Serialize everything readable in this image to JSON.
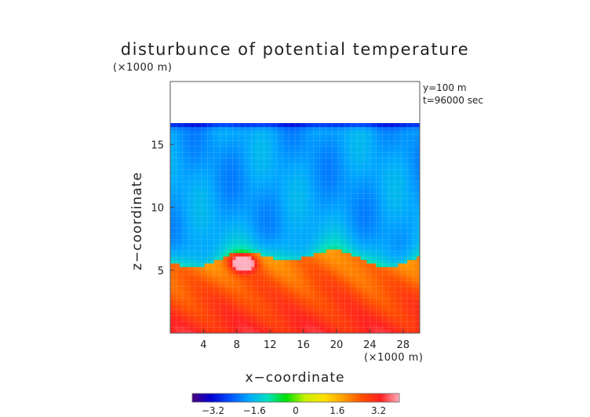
{
  "chart_data": {
    "type": "heatmap",
    "title": "disturbunce of potential temperature",
    "xlabel": "x−coordinate",
    "ylabel": "z−coordinate",
    "x_unit": "(×1000 m)",
    "y_unit": "(×1000 m)",
    "annotations": [
      "y=100 m",
      "t=96000 sec"
    ],
    "xlim": [
      0,
      30
    ],
    "ylim": [
      0,
      20
    ],
    "x_ticks": [
      {
        "value": 4,
        "label": "4"
      },
      {
        "value": 8,
        "label": "8"
      },
      {
        "value": 12,
        "label": "12"
      },
      {
        "value": 16,
        "label": "16"
      },
      {
        "value": 20,
        "label": "20"
      },
      {
        "value": 24,
        "label": "24"
      },
      {
        "value": 28,
        "label": "28"
      }
    ],
    "y_ticks": [
      {
        "value": 5,
        "label": "5"
      },
      {
        "value": 10,
        "label": "10"
      },
      {
        "value": 15,
        "label": "15"
      }
    ],
    "data_top_z": 16.7,
    "colorbar": {
      "range": [
        -4,
        4
      ],
      "ticks": [
        {
          "value": -3.2,
          "label": "−3.2"
        },
        {
          "value": -1.6,
          "label": "−1.6"
        },
        {
          "value": 0,
          "label": "0"
        },
        {
          "value": 1.6,
          "label": "1.6"
        },
        {
          "value": 3.2,
          "label": "3.2"
        }
      ],
      "colors": [
        "#4b0082",
        "#0000d0",
        "#0050ff",
        "#00a8ff",
        "#00e0c0",
        "#00e000",
        "#c8f000",
        "#ffe000",
        "#ffa000",
        "#ff5000",
        "#ff2020",
        "#ffb0c0"
      ]
    }
  }
}
